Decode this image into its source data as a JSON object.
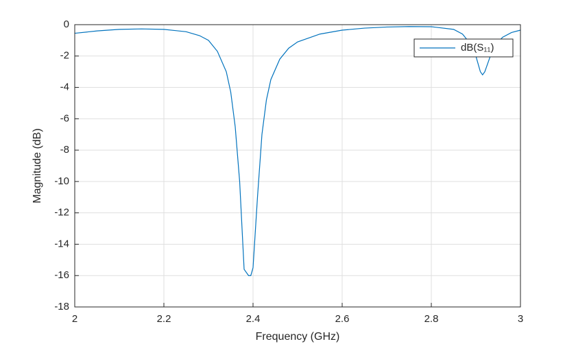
{
  "chart_data": {
    "type": "line",
    "xlabel": "Frequency (GHz)",
    "ylabel": "Magnitude (dB)",
    "x": [
      2.0,
      2.05,
      2.1,
      2.15,
      2.2,
      2.25,
      2.28,
      2.3,
      2.32,
      2.34,
      2.35,
      2.36,
      2.37,
      2.38,
      2.39,
      2.395,
      2.4,
      2.41,
      2.42,
      2.43,
      2.44,
      2.46,
      2.48,
      2.5,
      2.55,
      2.6,
      2.65,
      2.7,
      2.75,
      2.8,
      2.85,
      2.87,
      2.89,
      2.9,
      2.91,
      2.915,
      2.92,
      2.93,
      2.94,
      2.96,
      2.98,
      3.0
    ],
    "series": [
      {
        "name": "dB(S₁₁)",
        "color": "#0072bd",
        "values": [
          -0.55,
          -0.4,
          -0.3,
          -0.27,
          -0.3,
          -0.45,
          -0.7,
          -1.0,
          -1.7,
          -3.0,
          -4.3,
          -6.5,
          -10,
          -15.6,
          -16,
          -16,
          -15.5,
          -11,
          -7,
          -4.8,
          -3.5,
          -2.2,
          -1.5,
          -1.1,
          -0.6,
          -0.35,
          -0.22,
          -0.15,
          -0.12,
          -0.13,
          -0.3,
          -0.6,
          -1.3,
          -2.0,
          -3.0,
          -3.2,
          -3.0,
          -2.2,
          -1.4,
          -0.8,
          -0.5,
          -0.35
        ]
      }
    ],
    "xlim": [
      2,
      3
    ],
    "xticks": [
      2,
      2.2,
      2.4,
      2.6,
      2.8,
      3
    ],
    "ylim": [
      -18,
      0
    ],
    "yticks": [
      -18,
      -16,
      -14,
      -12,
      -10,
      -8,
      -6,
      -4,
      -2,
      0
    ],
    "grid": true,
    "legend": "northeast"
  }
}
